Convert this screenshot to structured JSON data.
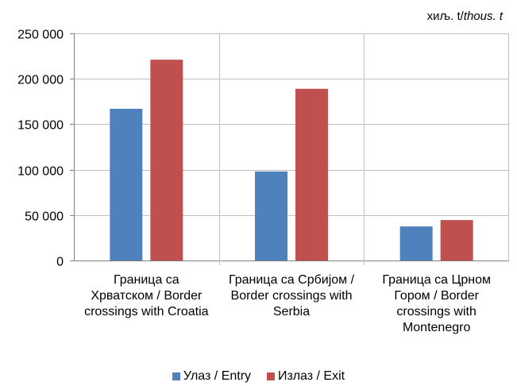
{
  "unit_note": {
    "prefix": "хиљ. t/",
    "italic": "thous. t"
  },
  "colors": {
    "entry": "#4f81bd",
    "exit": "#c0504d",
    "grid": "#c0c0c0",
    "axis": "#808080"
  },
  "chart_data": {
    "type": "bar",
    "categories": [
      "Граница са Хрватском / Border crossings with Croatia",
      "Граница са Србијом / Border crossings with Serbia",
      "Граница са Црном Гором / Border crossings with Montenegro"
    ],
    "category_lines": [
      [
        "Граница са",
        "Хрватском / Border",
        "crossings with Croatia"
      ],
      [
        "Граница са Србијом /",
        "Border crossings with",
        "Serbia"
      ],
      [
        "Граница са Црном",
        "Гором / Border",
        "crossings with",
        "Montenegro"
      ]
    ],
    "series": [
      {
        "name": "Улаз / Entry",
        "values": [
          167000,
          98000,
          37500
        ]
      },
      {
        "name": "Излаз / Exit",
        "values": [
          221000,
          189000,
          44500
        ]
      }
    ],
    "ylim": [
      0,
      250000
    ],
    "yticks": [
      0,
      50000,
      100000,
      150000,
      200000,
      250000
    ],
    "ytick_labels": [
      "0",
      "50 000",
      "100 000",
      "150 000",
      "200 000",
      "250 000"
    ],
    "grid": true,
    "legend_position": "bottom"
  }
}
